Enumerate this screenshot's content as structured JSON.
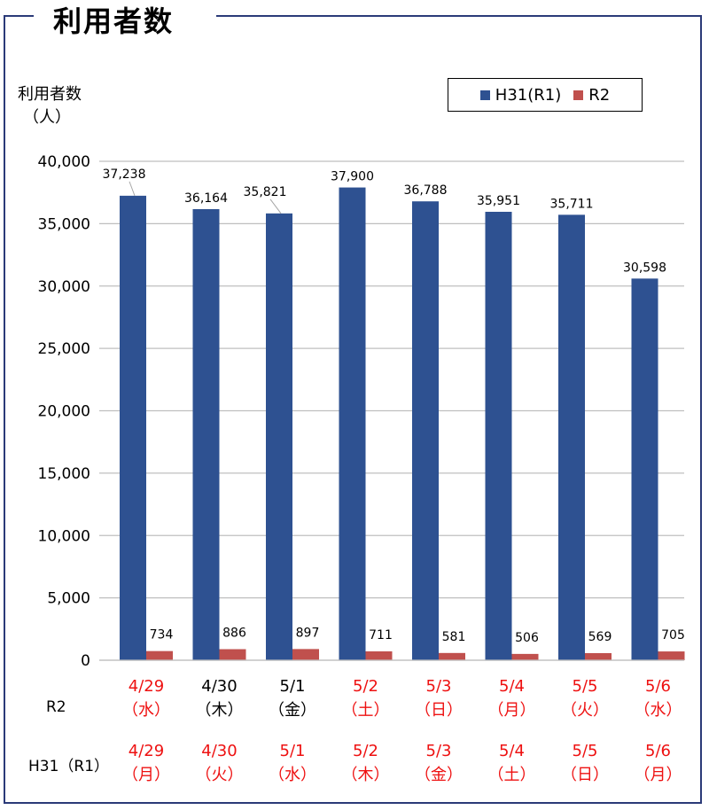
{
  "title": "利用者数",
  "ylabel_line1": "利用者数",
  "ylabel_line2": "（人）",
  "colors": {
    "h31": "#2e5191",
    "r2": "#c0504d",
    "holiday": "#ee1111",
    "weekday": "#000000",
    "frame": "#2b3a78"
  },
  "chart_data": {
    "type": "bar",
    "ylim": [
      0,
      40000
    ],
    "yticks": [
      0,
      5000,
      10000,
      15000,
      20000,
      25000,
      30000,
      35000,
      40000
    ],
    "ytick_labels": [
      "0",
      "5,000",
      "10,000",
      "15,000",
      "20,000",
      "25,000",
      "30,000",
      "35,000",
      "40,000"
    ],
    "grid": true,
    "legend_position": "top-right",
    "series": [
      {
        "name": "H31(R1)",
        "values": [
          37238,
          36164,
          35821,
          37900,
          36788,
          35951,
          35711,
          30598
        ],
        "labels": [
          "37,238",
          "36,164",
          "35,821",
          "37,900",
          "36,788",
          "35,951",
          "35,711",
          "30,598"
        ]
      },
      {
        "name": "R2",
        "values": [
          734,
          886,
          897,
          711,
          581,
          506,
          569,
          705
        ],
        "labels": [
          "734",
          "886",
          "897",
          "711",
          "581",
          "506",
          "569",
          "705"
        ]
      }
    ],
    "rows": [
      {
        "label": "R2",
        "dates": [
          "4/29",
          "4/30",
          "5/1",
          "5/2",
          "5/3",
          "5/4",
          "5/5",
          "5/6"
        ],
        "days": [
          "（水）",
          "（木）",
          "（金）",
          "（土）",
          "（日）",
          "（月）",
          "（火）",
          "（水）"
        ],
        "holiday": [
          true,
          false,
          false,
          true,
          true,
          true,
          true,
          true
        ]
      },
      {
        "label": "H31（R1）",
        "dates": [
          "4/29",
          "4/30",
          "5/1",
          "5/2",
          "5/3",
          "5/4",
          "5/5",
          "5/6"
        ],
        "days": [
          "（月）",
          "（火）",
          "（水）",
          "（木）",
          "（金）",
          "（土）",
          "（日）",
          "（月）"
        ],
        "holiday": [
          true,
          true,
          true,
          true,
          true,
          true,
          true,
          true
        ]
      }
    ]
  }
}
